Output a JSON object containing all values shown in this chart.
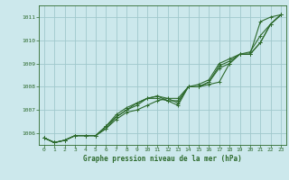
{
  "xlabel": "Graphe pression niveau de la mer (hPa)",
  "background_color": "#cce8ec",
  "grid_color": "#a0c8cc",
  "line_color": "#2d6a2d",
  "xlim": [
    -0.5,
    23.5
  ],
  "ylim": [
    1005.5,
    1011.5
  ],
  "yticks": [
    1006,
    1007,
    1008,
    1009,
    1010,
    1011
  ],
  "xticks": [
    0,
    1,
    2,
    3,
    4,
    5,
    6,
    7,
    8,
    9,
    10,
    11,
    12,
    13,
    14,
    15,
    16,
    17,
    18,
    19,
    20,
    21,
    22,
    23
  ],
  "series": [
    [
      1005.8,
      1005.6,
      1005.7,
      1005.9,
      1005.9,
      1005.9,
      1006.2,
      1006.6,
      1006.9,
      1007.0,
      1007.2,
      1007.4,
      1007.5,
      1007.3,
      1008.0,
      1008.0,
      1008.1,
      1008.2,
      1009.0,
      1009.4,
      1009.4,
      1010.8,
      1011.0,
      1011.1
    ],
    [
      1005.8,
      1005.6,
      1005.7,
      1005.9,
      1005.9,
      1005.9,
      1006.3,
      1006.8,
      1007.1,
      1007.3,
      1007.5,
      1007.5,
      1007.4,
      1007.4,
      1008.0,
      1008.0,
      1008.2,
      1008.9,
      1009.1,
      1009.4,
      1009.4,
      1009.9,
      1010.7,
      1011.1
    ],
    [
      1005.8,
      1005.6,
      1005.7,
      1005.9,
      1005.9,
      1005.9,
      1006.3,
      1006.7,
      1007.0,
      1007.3,
      1007.5,
      1007.6,
      1007.5,
      1007.5,
      1008.0,
      1008.1,
      1008.3,
      1009.0,
      1009.2,
      1009.4,
      1009.5,
      1010.2,
      1010.7,
      1011.1
    ],
    [
      1005.8,
      1005.6,
      1005.7,
      1005.9,
      1005.9,
      1005.9,
      1006.2,
      1006.7,
      1007.0,
      1007.2,
      1007.5,
      1007.6,
      1007.4,
      1007.2,
      1008.0,
      1008.0,
      1008.2,
      1008.8,
      1009.0,
      1009.4,
      1009.4,
      1009.9,
      1010.7,
      1011.1
    ]
  ]
}
